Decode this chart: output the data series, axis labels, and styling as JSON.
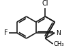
{
  "bond_color": "#1a1a1a",
  "bond_width": 1.2,
  "background_color": "#ffffff",
  "text_color": "#000000",
  "font_size": 7.0,
  "label_F": "F",
  "label_Cl": "Cl",
  "label_N": "N",
  "figsize": [
    1.1,
    0.73
  ],
  "dpi": 100
}
